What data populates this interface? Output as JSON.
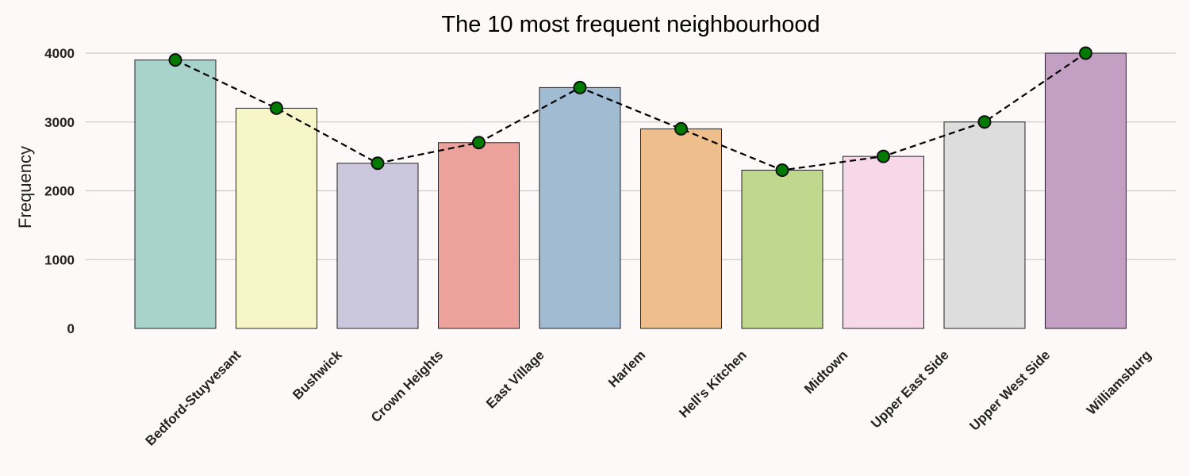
{
  "chart_data": {
    "type": "bar",
    "title": "The 10 most frequent neighbourhood",
    "xlabel": "",
    "ylabel": "Frequency",
    "categories": [
      "Bedford-Stuyvesant",
      "Bushwick",
      "Crown Heights",
      "East Village",
      "Harlem",
      "Hell's Kitchen",
      "Midtown",
      "Upper East Side",
      "Upper West Side",
      "Williamsburg"
    ],
    "values": [
      3900,
      3200,
      2400,
      2700,
      3500,
      2900,
      2300,
      2500,
      3000,
      4000
    ],
    "ylim": [
      0,
      4000
    ],
    "yticks": [
      0,
      1000,
      2000,
      3000,
      4000
    ],
    "grid": "horizontal",
    "bar_colors": [
      "#a8d3cb",
      "#f6f6c9",
      "#cbc8dd",
      "#eca29b",
      "#a1bbd2",
      "#eebf8d",
      "#c0d78e",
      "#f6d8e8",
      "#dddddd",
      "#c39fc3"
    ],
    "overlay_line": {
      "style": "dashed",
      "color": "#000000",
      "marker_color": "#007a00"
    }
  }
}
